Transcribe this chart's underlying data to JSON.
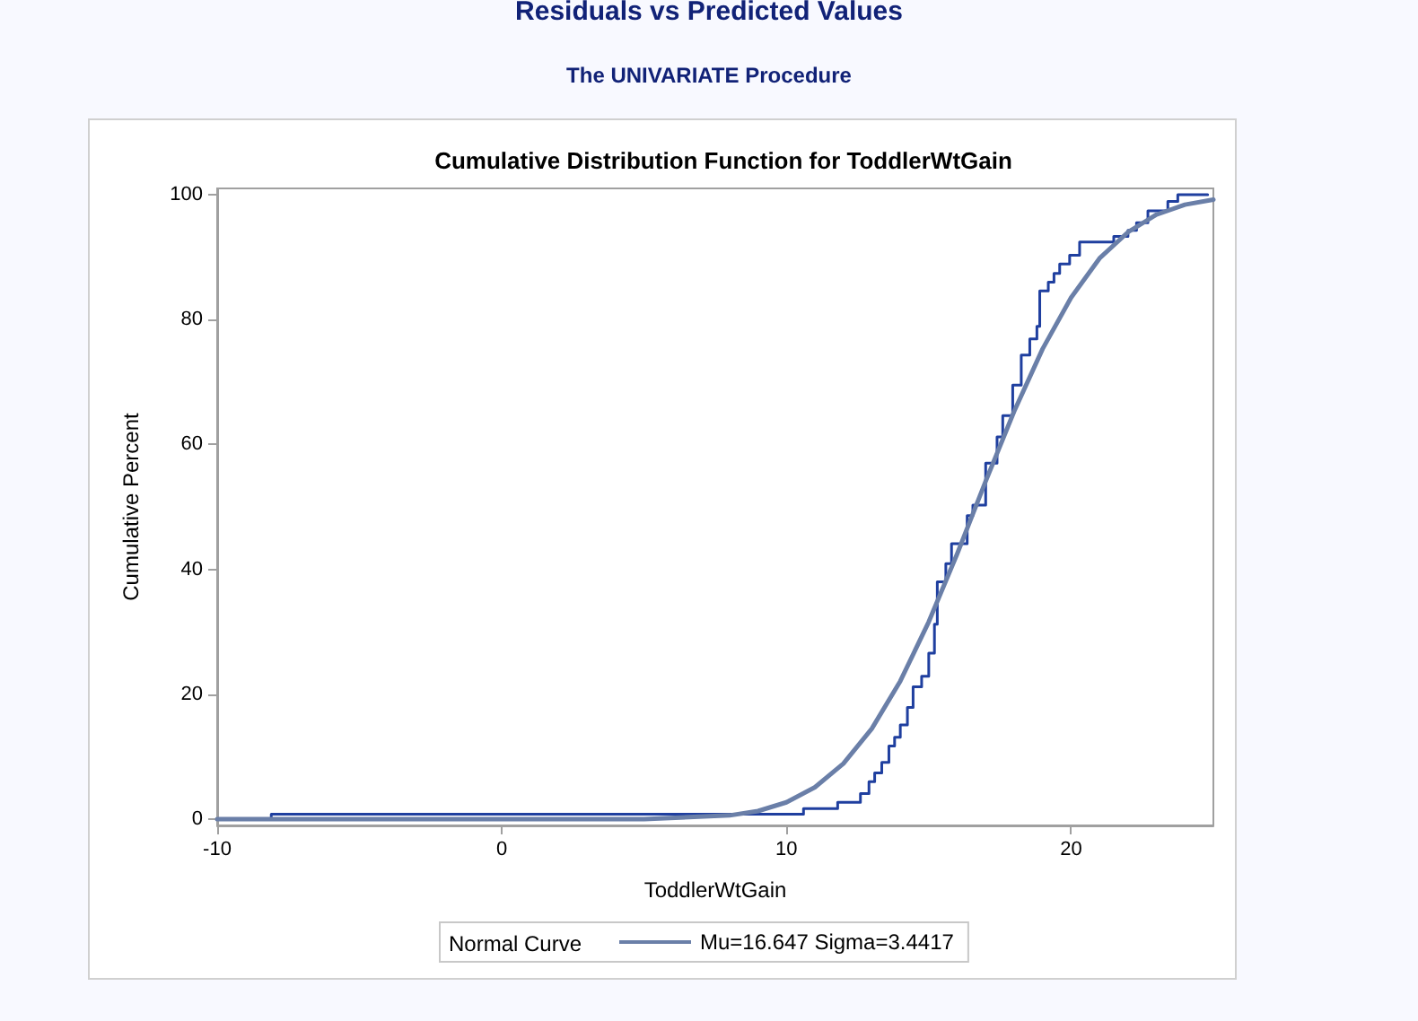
{
  "chart_data": {
    "type": "line",
    "title": "Residuals vs Predicted Values",
    "subtitle": "The UNIVARIATE Procedure",
    "annotations": [
      "Cumulative Distribution Function for ToddlerWtGain"
    ],
    "xlabel": "ToddlerWtGain",
    "ylabel": "Cumulative Percent",
    "legend_title": "Normal Curve",
    "legend": "bottom",
    "grid": false,
    "marker": "none",
    "line_style": "solid",
    "xlim": [
      -10,
      25
    ],
    "ylim": [
      -1,
      101
    ],
    "xticks": [
      -10,
      0,
      10,
      20
    ],
    "yticks": [
      0,
      20,
      40,
      60,
      80,
      100
    ],
    "series": [
      {
        "type": "step",
        "color": "#1f3f9f",
        "x": [
          -10,
          -8.1,
          10.6,
          11.8,
          12.6,
          12.9,
          13.1,
          13.35,
          13.6,
          13.8,
          14.0,
          14.25,
          14.45,
          14.75,
          15.0,
          15.2,
          15.3,
          15.6,
          15.8,
          16.1,
          16.35,
          16.55,
          17.0,
          17.4,
          17.6,
          17.95,
          18.25,
          18.55,
          18.8,
          18.9,
          19.2,
          19.4,
          19.6,
          19.95,
          20.3,
          21.5,
          22.0,
          22.3,
          22.7,
          23.4,
          23.75,
          24.8
        ],
        "values": [
          0,
          0.8,
          1.7,
          2.7,
          4.1,
          6,
          7.4,
          9.1,
          11.7,
          13.1,
          15.1,
          17.9,
          21.2,
          22.9,
          26.6,
          31.2,
          38,
          40.9,
          44.1,
          44.1,
          48.6,
          50.3,
          57,
          61.2,
          64.6,
          69.5,
          74.3,
          76.9,
          78.9,
          84.6,
          86,
          87.4,
          88.9,
          90.3,
          92.4,
          93.3,
          94.3,
          95.5,
          97.4,
          98.9,
          100,
          100
        ]
      },
      {
        "type": "line",
        "name": "Mu=16.647 Sigma=3.4417",
        "color": "#6a7fa8",
        "x": [
          -10,
          5,
          8,
          9,
          10,
          11,
          12,
          13,
          14,
          15,
          16,
          17,
          18,
          19,
          20,
          21,
          22,
          23,
          24,
          25
        ],
        "values": [
          0,
          0,
          0.6,
          1.3,
          2.7,
          5.1,
          8.9,
          14.5,
          22.1,
          31.6,
          42.5,
          54.1,
          65.3,
          75.3,
          83.5,
          89.8,
          94,
          96.8,
          98.4,
          99.2
        ]
      }
    ]
  }
}
